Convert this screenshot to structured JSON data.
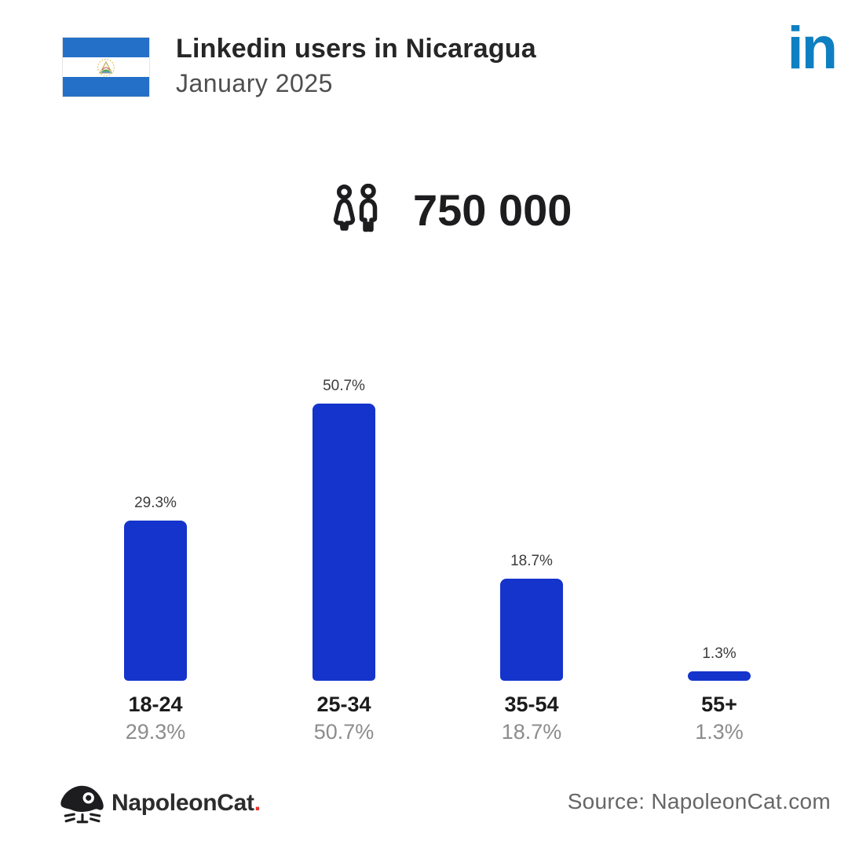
{
  "header": {
    "title": "Linkedin users in Nicaragua",
    "subtitle": "January 2025",
    "linkedin_text": "in"
  },
  "stats": {
    "total_users": "750 000"
  },
  "chart_data": {
    "type": "bar",
    "categories": [
      "18-24",
      "25-34",
      "35-54",
      "55+"
    ],
    "values": [
      29.3,
      50.7,
      18.7,
      1.3
    ],
    "value_labels": [
      "29.3%",
      "50.7%",
      "18.7%",
      "1.3%"
    ],
    "unit": "%",
    "bar_color": "#1434CB",
    "ylim": [
      0,
      55
    ],
    "grid": false,
    "legend": false,
    "xlabel": "",
    "ylabel": ""
  },
  "footer": {
    "brand": "NapoleonCat",
    "brand_dot": ".",
    "source": "Source: NapoleonCat.com"
  },
  "icons": {
    "flag": "nicaragua-flag",
    "linkedin": "linkedin-in-logo",
    "users": "people-icon",
    "brand": "napoleoncat-cat-logo"
  },
  "colors": {
    "bar_blue": "#1434CB",
    "linkedin_blue": "#0E80C2",
    "flag_blue": "#2470C8",
    "title_text": "#262626",
    "subtitle_text": "#4F4F4F",
    "muted_text": "#8C8C8C",
    "brand_red": "#E8332A"
  }
}
